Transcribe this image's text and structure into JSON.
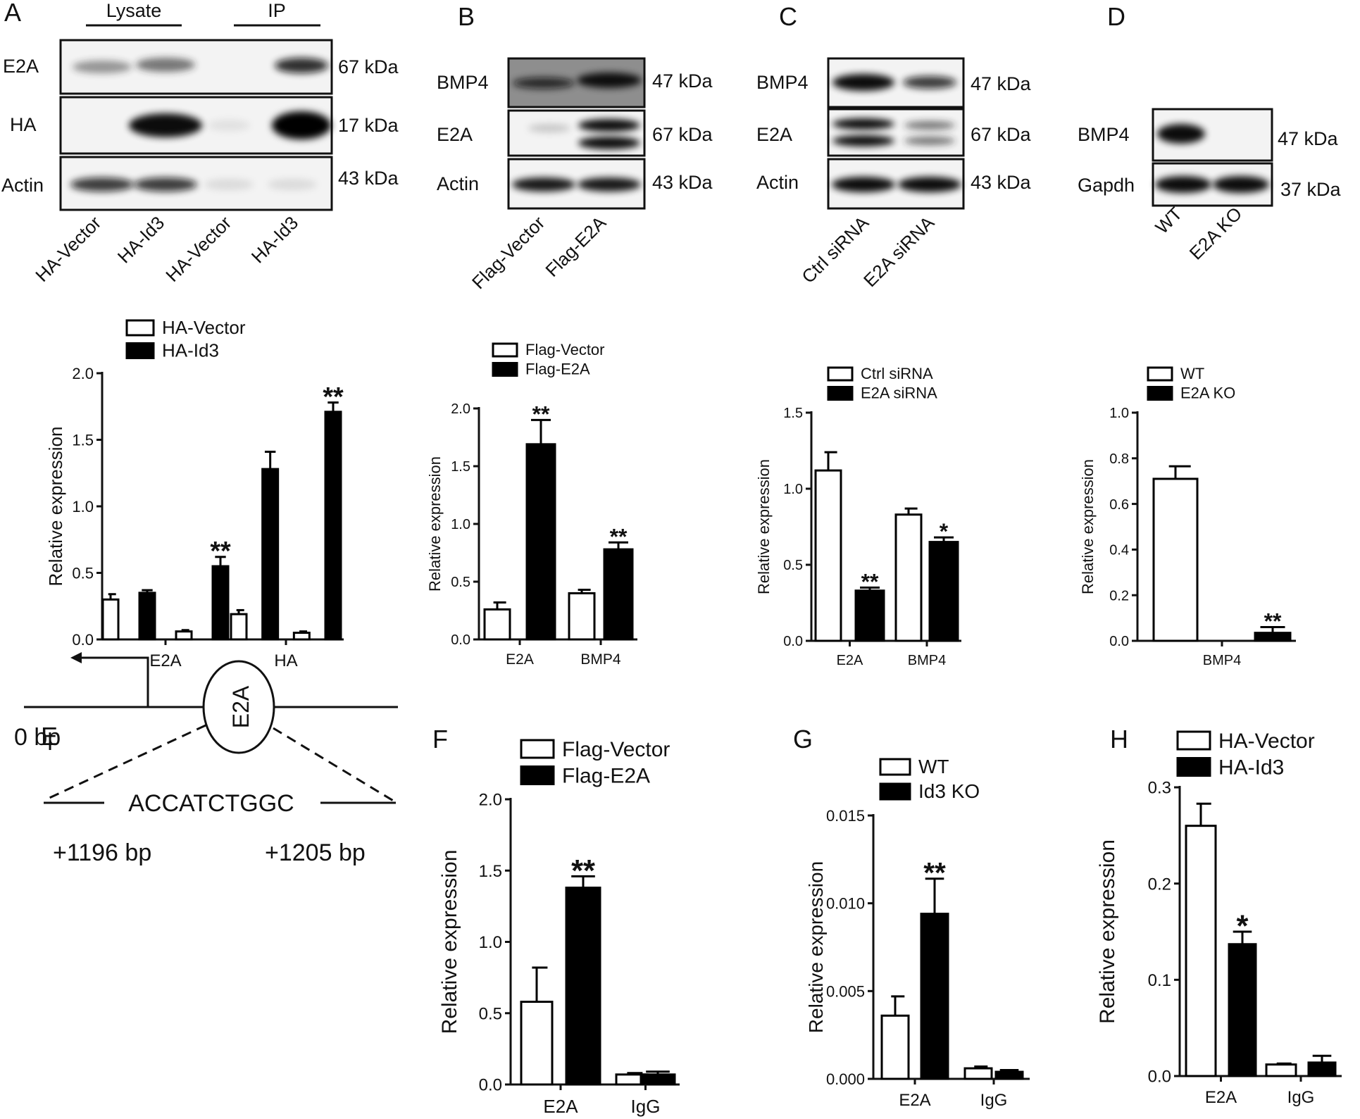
{
  "panel_letters": {
    "A": "A",
    "B": "B",
    "C": "C",
    "D": "D",
    "E": "E",
    "F": "F",
    "G": "G",
    "H": "H"
  },
  "blots": {
    "A": {
      "groups": [
        {
          "label": "Lysate"
        },
        {
          "label": "IP"
        }
      ],
      "rows": [
        {
          "label": "E2A",
          "kda": "67 kDa",
          "bands": [
            0.45,
            0.55,
            0.0,
            0.85
          ]
        },
        {
          "label": "HA",
          "kda": "17 kDa",
          "bands": [
            0.0,
            1.0,
            0.05,
            1.0
          ]
        },
        {
          "label": "Actin",
          "kda": "43 kDa",
          "bands": [
            0.8,
            0.8,
            0.1,
            0.1
          ]
        }
      ],
      "lanes": [
        "HA-Vector",
        "HA-Id3",
        "HA-Vector",
        "HA-Id3"
      ]
    },
    "B": {
      "rows": [
        {
          "label": "BMP4",
          "kda": "47 kDa",
          "bands": [
            0.8,
            0.9
          ],
          "grey_bg": true
        },
        {
          "label": "E2A",
          "kda": "67 kDa",
          "bands": [
            0.2,
            1.0
          ],
          "double": true
        },
        {
          "label": "Actin",
          "kda": "43 kDa",
          "bands": [
            0.9,
            0.9
          ]
        }
      ],
      "lanes": [
        "Flag-Vector",
        "Flag-E2A"
      ]
    },
    "C": {
      "rows": [
        {
          "label": "BMP4",
          "kda": "47 kDa",
          "bands": [
            1.0,
            0.7
          ]
        },
        {
          "label": "E2A",
          "kda": "67 kDa",
          "bands": [
            1.0,
            0.5
          ],
          "double": true
        },
        {
          "label": "Actin",
          "kda": "43 kDa",
          "bands": [
            1.0,
            1.0
          ]
        }
      ],
      "lanes": [
        "Ctrl siRNA",
        "E2A siRNA"
      ]
    },
    "D": {
      "rows": [
        {
          "label": "BMP4",
          "kda": "47 kDa",
          "bands": [
            1.0,
            0.0
          ]
        },
        {
          "label": "Gapdh",
          "kda": "37 kDa",
          "bands": [
            1.0,
            1.0
          ]
        }
      ],
      "lanes": [
        "WT",
        "E2A KO"
      ]
    }
  },
  "diagram_e": {
    "tss_label": "0 bp",
    "factor": "E2A",
    "sequence": "ACCATCTGGC",
    "start": "+1196 bp",
    "end": "+1205 bp"
  },
  "chart_data": [
    {
      "panel": "A",
      "type": "bar",
      "ylabel": "Relative expression",
      "categories": [
        "E2A",
        "HA"
      ],
      "ylim": [
        0,
        2.0
      ],
      "yticks": [
        "0.0",
        "0.5",
        "1.0",
        "1.5",
        "2.0"
      ],
      "bars_per_group": 4,
      "fills": [
        "white",
        "black",
        "white",
        "black"
      ],
      "legend": [
        {
          "name": "HA-Vector",
          "fill": "white"
        },
        {
          "name": "HA-Id3",
          "fill": "black"
        }
      ],
      "values": [
        [
          0.3,
          0.35,
          0.06,
          0.55
        ],
        [
          0.19,
          1.28,
          0.05,
          1.71
        ]
      ],
      "errors": [
        [
          0.04,
          0.02,
          0.01,
          0.07
        ],
        [
          0.03,
          0.13,
          0.01,
          0.07
        ]
      ],
      "annotations": [
        {
          "group": 0,
          "bar": 3,
          "text": "**"
        },
        {
          "group": 1,
          "bar": 3,
          "text": "**"
        }
      ]
    },
    {
      "panel": "B",
      "type": "bar",
      "ylabel": "Relative expression",
      "categories": [
        "E2A",
        "BMP4"
      ],
      "ylim": [
        0,
        2.0
      ],
      "yticks": [
        "0.0",
        "0.5",
        "1.0",
        "1.5",
        "2.0"
      ],
      "bars_per_group": 2,
      "fills": [
        "white",
        "black"
      ],
      "legend": [
        {
          "name": "Flag-Vector",
          "fill": "white"
        },
        {
          "name": "Flag-E2A",
          "fill": "black"
        }
      ],
      "values": [
        [
          0.26,
          1.69
        ],
        [
          0.4,
          0.78
        ]
      ],
      "errors": [
        [
          0.06,
          0.21
        ],
        [
          0.03,
          0.06
        ]
      ],
      "annotations": [
        {
          "group": 0,
          "bar": 1,
          "text": "**"
        },
        {
          "group": 1,
          "bar": 1,
          "text": "**"
        }
      ]
    },
    {
      "panel": "C",
      "type": "bar",
      "ylabel": "Relative expression",
      "categories": [
        "E2A",
        "BMP4"
      ],
      "ylim": [
        0,
        1.5
      ],
      "yticks": [
        "0.0",
        "0.5",
        "1.0",
        "1.5"
      ],
      "bars_per_group": 2,
      "fills": [
        "white",
        "black"
      ],
      "legend": [
        {
          "name": "Ctrl siRNA",
          "fill": "white"
        },
        {
          "name": "E2A siRNA",
          "fill": "black"
        }
      ],
      "values": [
        [
          1.12,
          0.33
        ],
        [
          0.83,
          0.65
        ]
      ],
      "errors": [
        [
          0.12,
          0.02
        ],
        [
          0.04,
          0.03
        ]
      ],
      "annotations": [
        {
          "group": 0,
          "bar": 1,
          "text": "**"
        },
        {
          "group": 1,
          "bar": 1,
          "text": "*"
        }
      ]
    },
    {
      "panel": "D",
      "type": "bar",
      "ylabel": "Relative expression",
      "categories": [
        "BMP4"
      ],
      "ylim": [
        0,
        1.0
      ],
      "yticks": [
        "0.0",
        "0.2",
        "0.4",
        "0.6",
        "0.8",
        "1.0"
      ],
      "bars_per_group": 2,
      "fills": [
        "white",
        "black"
      ],
      "legend": [
        {
          "name": "WT",
          "fill": "white"
        },
        {
          "name": "E2A KO",
          "fill": "black"
        }
      ],
      "values": [
        [
          0.71,
          0.035
        ]
      ],
      "errors": [
        [
          0.055,
          0.025
        ]
      ],
      "annotations": [
        {
          "group": 0,
          "bar": 1,
          "text": "**"
        }
      ]
    },
    {
      "panel": "F",
      "type": "bar",
      "ylabel": "Relative expression",
      "categories": [
        "E2A",
        "IgG"
      ],
      "ylim": [
        0,
        2.0
      ],
      "yticks": [
        "0.0",
        "0.5",
        "1.0",
        "1.5",
        "2.0"
      ],
      "bars_per_group": 2,
      "fills": [
        "white",
        "black"
      ],
      "legend": [
        {
          "name": "Flag-Vector",
          "fill": "white"
        },
        {
          "name": "Flag-E2A",
          "fill": "black"
        }
      ],
      "values": [
        [
          0.58,
          1.38
        ],
        [
          0.07,
          0.07
        ]
      ],
      "errors": [
        [
          0.24,
          0.08
        ],
        [
          0.01,
          0.02
        ]
      ],
      "annotations": [
        {
          "group": 0,
          "bar": 1,
          "text": "**"
        }
      ]
    },
    {
      "panel": "G",
      "type": "bar",
      "ylabel": "Relative expression",
      "categories": [
        "E2A",
        "IgG"
      ],
      "ylim": [
        0,
        0.015
      ],
      "yticks": [
        "0.000",
        "0.005",
        "0.010",
        "0.015"
      ],
      "bars_per_group": 2,
      "fills": [
        "white",
        "black"
      ],
      "legend": [
        {
          "name": "WT",
          "fill": "white"
        },
        {
          "name": "Id3 KO",
          "fill": "black"
        }
      ],
      "values": [
        [
          0.0036,
          0.0094
        ],
        [
          0.0006,
          0.0004
        ]
      ],
      "errors": [
        [
          0.0011,
          0.002
        ],
        [
          0.0001,
          0.0001
        ]
      ],
      "annotations": [
        {
          "group": 0,
          "bar": 1,
          "text": "**"
        }
      ]
    },
    {
      "panel": "H",
      "type": "bar",
      "ylabel": "Relative expression",
      "categories": [
        "E2A",
        "IgG"
      ],
      "ylim": [
        0,
        0.3
      ],
      "yticks": [
        "0.0",
        "0.1",
        "0.2",
        "0.3"
      ],
      "bars_per_group": 2,
      "fills": [
        "white",
        "black"
      ],
      "legend": [
        {
          "name": "HA-Vector",
          "fill": "white"
        },
        {
          "name": "HA-Id3",
          "fill": "black"
        }
      ],
      "values": [
        [
          0.26,
          0.137
        ],
        [
          0.012,
          0.014
        ]
      ],
      "errors": [
        [
          0.023,
          0.013
        ],
        [
          0.001,
          0.007
        ]
      ],
      "annotations": [
        {
          "group": 0,
          "bar": 1,
          "text": "*"
        }
      ]
    }
  ]
}
